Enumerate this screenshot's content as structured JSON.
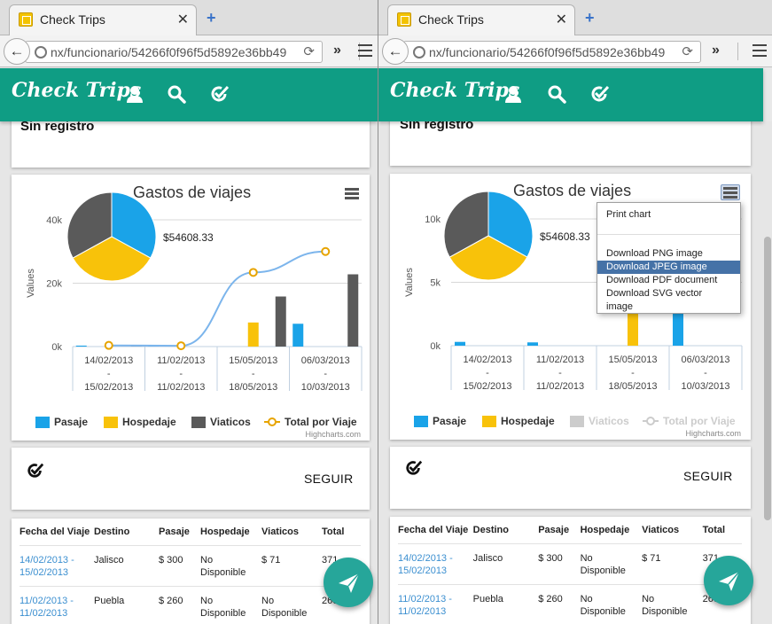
{
  "tab": {
    "title": "Check Trips",
    "close": "✕",
    "new_tab": "+"
  },
  "address": {
    "url": "nx/funcionario/54266f0f96f5d5892e36bb49",
    "overflow": "»"
  },
  "app": {
    "logo": "Check Trips"
  },
  "summary": {
    "sin_registro": "Sin registro"
  },
  "chart": {
    "title": "Gastos de viajes",
    "pie_total": "$54608.33",
    "yaxis_title": "Values",
    "credits": "Highcharts.com",
    "legend": [
      "Pasaje",
      "Hospedaje",
      "Viaticos",
      "Total por Viaje"
    ],
    "colors": {
      "pasaje": "#1aa3e8",
      "hospedaje": "#f8c20a",
      "viaticos": "#5a5a5a",
      "total": "#e7a400",
      "spline": "#7cb5ec"
    },
    "categories": [
      [
        "14/02/2013",
        "-",
        "15/02/2013"
      ],
      [
        "11/02/2013",
        "-",
        "11/02/2013"
      ],
      [
        "15/05/2013",
        "-",
        "18/05/2013"
      ],
      [
        "06/03/2013",
        "-",
        "10/03/2013"
      ]
    ]
  },
  "chart_data": [
    {
      "type": "bar",
      "title": "Gastos de viajes",
      "ylabel": "Values",
      "categories": [
        "14/02/2013 - 15/02/2013",
        "11/02/2013 - 11/02/2013",
        "15/05/2013 - 18/05/2013",
        "06/03/2013 - 10/03/2013"
      ],
      "ylim": [
        0,
        40000
      ],
      "yticks": [
        "0k",
        "20k",
        "40k"
      ],
      "series": [
        {
          "name": "Pasaje",
          "values": [
            300,
            260,
            0,
            7200
          ]
        },
        {
          "name": "Hospedaje",
          "values": [
            0,
            0,
            7600,
            0
          ]
        },
        {
          "name": "Viaticos",
          "values": [
            71,
            0,
            15800,
            22800
          ]
        },
        {
          "name": "Total por Viaje",
          "type": "spline",
          "values": [
            371,
            260,
            23400,
            30000
          ]
        }
      ],
      "pie": {
        "slices": [
          {
            "name": "Pasaje",
            "value": 33
          },
          {
            "name": "Hospedaje",
            "value": 34
          },
          {
            "name": "Viaticos",
            "value": 33
          }
        ],
        "label": "$54608.33"
      },
      "legend_position": "bottom"
    },
    {
      "type": "bar",
      "title": "Gastos de viajes",
      "ylabel": "Values",
      "categories": [
        "14/02/2013 - 15/02/2013",
        "11/02/2013 - 11/02/2013",
        "15/05/2013 - 18/05/2013",
        "06/03/2013 - 10/03/2013"
      ],
      "ylim": [
        0,
        10000
      ],
      "yticks": [
        "0k",
        "5k",
        "10k"
      ],
      "series": [
        {
          "name": "Pasaje",
          "values": [
            300,
            260,
            0,
            7200
          ]
        },
        {
          "name": "Hospedaje",
          "values": [
            0,
            0,
            7600,
            0
          ]
        }
      ],
      "hidden_series": [
        "Viaticos",
        "Total por Viaje"
      ],
      "pie": {
        "slices": [
          {
            "name": "Pasaje",
            "value": 33
          },
          {
            "name": "Hospedaje",
            "value": 34
          },
          {
            "name": "Viaticos",
            "value": 33
          }
        ],
        "label": "$54608.33"
      },
      "legend_position": "bottom"
    }
  ],
  "export_menu": {
    "items": [
      "Print chart",
      "Download PNG image",
      "Download JPEG image",
      "Download PDF document",
      "Download SVG vector image"
    ],
    "highlighted": "Download JPEG image"
  },
  "follow": {
    "label": "SEGUIR"
  },
  "table": {
    "headers": [
      "Fecha del Viaje",
      "Destino",
      "Pasaje",
      "Hospedaje",
      "Viaticos",
      "Total"
    ],
    "rows": [
      {
        "fecha1": "14/02/2013 -",
        "fecha2": "15/02/2013",
        "destino": "Jalisco",
        "pasaje": "$ 300",
        "hosp1": "No",
        "hosp2": "Disponible",
        "viat1": "$ 71",
        "viat2": "",
        "total": "371"
      },
      {
        "fecha1": "11/02/2013 -",
        "fecha2": "11/02/2013",
        "destino": "Puebla",
        "pasaje": "$ 260",
        "hosp1": "No",
        "hosp2": "Disponible",
        "viat1": "No",
        "viat2": "Disponible",
        "total": "260"
      }
    ]
  }
}
